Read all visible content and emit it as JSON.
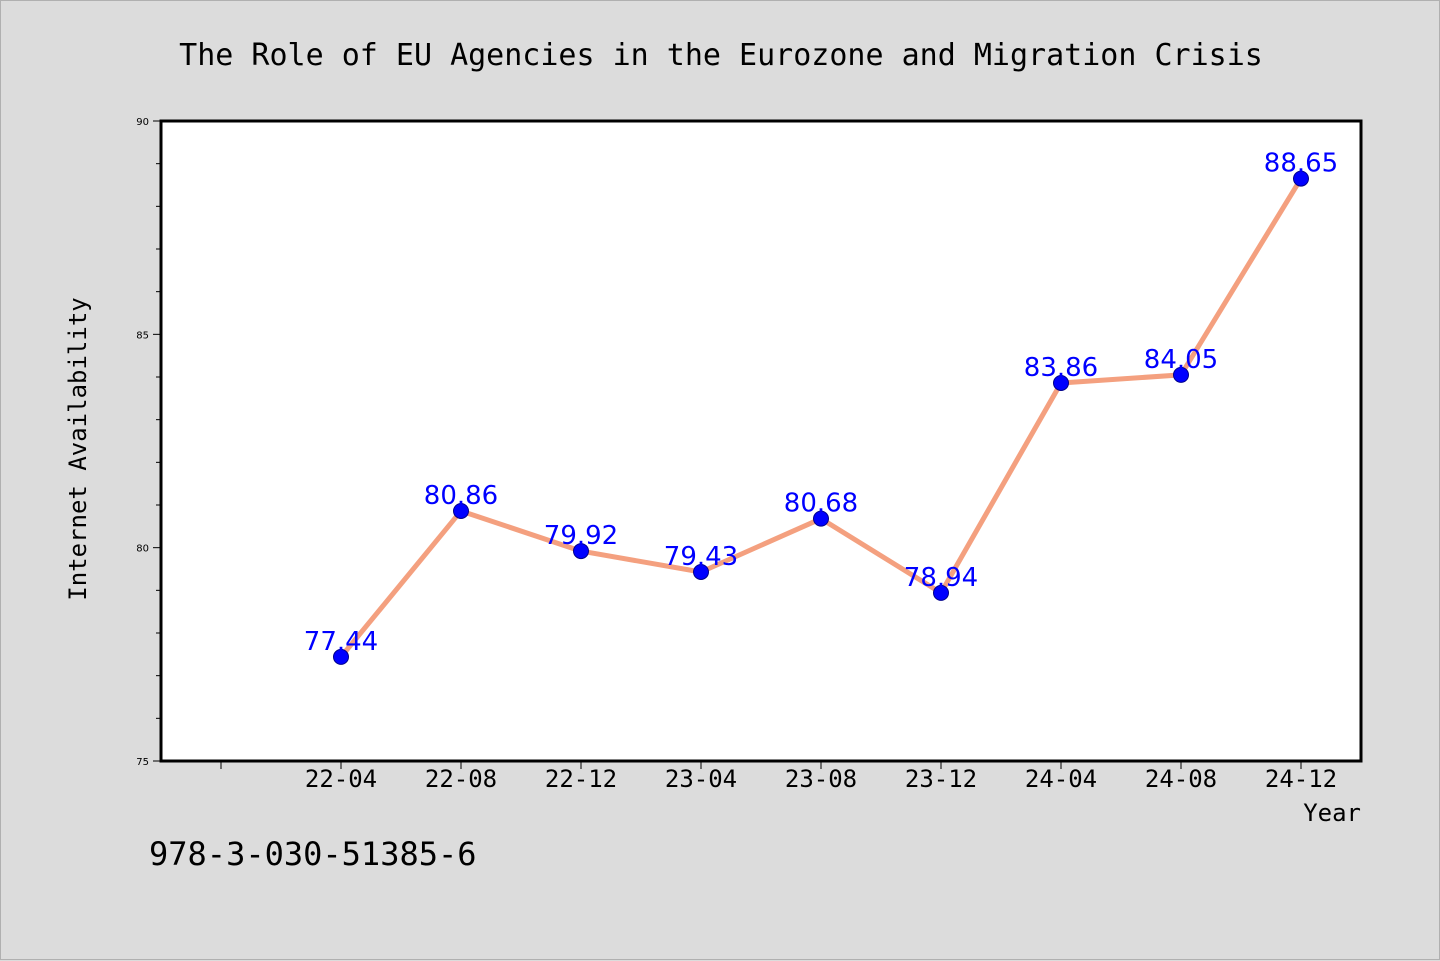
{
  "footnote": "978-3-030-51385-6",
  "colors": {
    "line": "#f4a07f",
    "marker": "#0000ff",
    "label": "#0000ff",
    "plot_background": "#ffffff",
    "page_background": "#dcdcdc"
  },
  "chart_data": {
    "type": "line",
    "title": "The Role of EU Agencies in the Eurozone and Migration Crisis",
    "xlabel": "Year",
    "ylabel": "Internet Availability",
    "categories": [
      "22-04",
      "22-08",
      "22-12",
      "23-04",
      "23-08",
      "23-12",
      "24-04",
      "24-08",
      "24-12"
    ],
    "series": [
      {
        "values": [
          77.44,
          80.86,
          79.92,
          79.43,
          80.68,
          78.94,
          83.86,
          84.05,
          88.65
        ],
        "value_labels": [
          "77.44",
          "80.86",
          "79.92",
          "79.43",
          "80.68",
          "78.94",
          "83.86",
          "84.05",
          "88.65"
        ]
      }
    ],
    "ylim": [
      75,
      90
    ],
    "yticks": [
      75,
      80,
      85,
      90
    ],
    "yticks_labels": [
      "75",
      "80",
      "85",
      "90"
    ],
    "grid": false,
    "legend": "none"
  }
}
